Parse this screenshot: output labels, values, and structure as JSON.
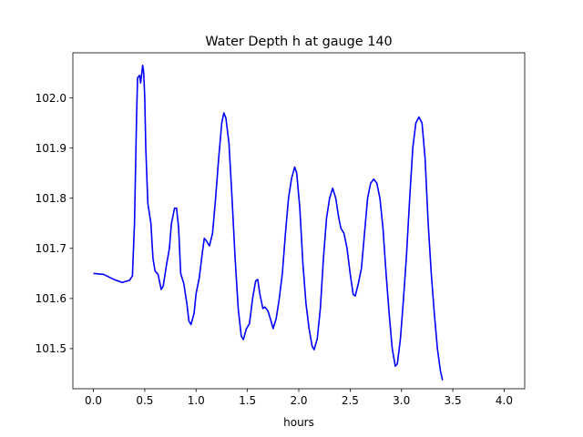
{
  "chart_data": {
    "type": "line",
    "title": "Water Depth h at gauge 140",
    "xlabel": "hours",
    "ylabel": "",
    "xlim": [
      -0.2,
      4.2
    ],
    "ylim": [
      101.42,
      102.09
    ],
    "x_ticks": [
      0.0,
      0.5,
      1.0,
      1.5,
      2.0,
      2.5,
      3.0,
      3.5,
      4.0
    ],
    "x_tick_labels": [
      "0.0",
      "0.5",
      "1.0",
      "1.5",
      "2.0",
      "2.5",
      "3.0",
      "3.5",
      "4.0"
    ],
    "y_ticks": [
      101.5,
      101.6,
      101.7,
      101.8,
      101.9,
      102.0
    ],
    "y_tick_labels": [
      "101.5",
      "101.6",
      "101.7",
      "101.8",
      "101.9",
      "102.0"
    ],
    "grid": false,
    "series": [
      {
        "color": "#0000ff",
        "points": [
          [
            0.0,
            101.65
          ],
          [
            0.1,
            101.648
          ],
          [
            0.2,
            101.638
          ],
          [
            0.28,
            101.632
          ],
          [
            0.35,
            101.636
          ],
          [
            0.38,
            101.645
          ],
          [
            0.4,
            101.75
          ],
          [
            0.42,
            101.96
          ],
          [
            0.43,
            102.04
          ],
          [
            0.45,
            102.045
          ],
          [
            0.46,
            102.03
          ],
          [
            0.48,
            102.065
          ],
          [
            0.49,
            102.05
          ],
          [
            0.5,
            102.0
          ],
          [
            0.51,
            101.9
          ],
          [
            0.53,
            101.79
          ],
          [
            0.56,
            101.75
          ],
          [
            0.58,
            101.68
          ],
          [
            0.6,
            101.655
          ],
          [
            0.63,
            101.648
          ],
          [
            0.66,
            101.618
          ],
          [
            0.68,
            101.625
          ],
          [
            0.71,
            101.665
          ],
          [
            0.74,
            101.7
          ],
          [
            0.76,
            101.75
          ],
          [
            0.79,
            101.78
          ],
          [
            0.81,
            101.78
          ],
          [
            0.83,
            101.74
          ],
          [
            0.85,
            101.65
          ],
          [
            0.88,
            101.63
          ],
          [
            0.91,
            101.59
          ],
          [
            0.93,
            101.555
          ],
          [
            0.95,
            101.548
          ],
          [
            0.98,
            101.57
          ],
          [
            1.0,
            101.61
          ],
          [
            1.03,
            101.64
          ],
          [
            1.06,
            101.69
          ],
          [
            1.08,
            101.72
          ],
          [
            1.1,
            101.715
          ],
          [
            1.13,
            101.705
          ],
          [
            1.16,
            101.73
          ],
          [
            1.19,
            101.8
          ],
          [
            1.22,
            101.88
          ],
          [
            1.25,
            101.95
          ],
          [
            1.27,
            101.97
          ],
          [
            1.29,
            101.96
          ],
          [
            1.32,
            101.91
          ],
          [
            1.35,
            101.8
          ],
          [
            1.38,
            101.68
          ],
          [
            1.41,
            101.58
          ],
          [
            1.44,
            101.525
          ],
          [
            1.46,
            101.518
          ],
          [
            1.49,
            101.54
          ],
          [
            1.52,
            101.55
          ],
          [
            1.55,
            101.6
          ],
          [
            1.58,
            101.635
          ],
          [
            1.6,
            101.638
          ],
          [
            1.62,
            101.61
          ],
          [
            1.65,
            101.58
          ],
          [
            1.67,
            101.583
          ],
          [
            1.7,
            101.575
          ],
          [
            1.73,
            101.555
          ],
          [
            1.75,
            101.54
          ],
          [
            1.78,
            101.56
          ],
          [
            1.81,
            101.6
          ],
          [
            1.84,
            101.65
          ],
          [
            1.87,
            101.73
          ],
          [
            1.9,
            101.8
          ],
          [
            1.93,
            101.84
          ],
          [
            1.96,
            101.862
          ],
          [
            1.98,
            101.85
          ],
          [
            2.01,
            101.78
          ],
          [
            2.04,
            101.67
          ],
          [
            2.07,
            101.59
          ],
          [
            2.1,
            101.54
          ],
          [
            2.13,
            101.505
          ],
          [
            2.15,
            101.498
          ],
          [
            2.18,
            101.52
          ],
          [
            2.21,
            101.58
          ],
          [
            2.24,
            101.68
          ],
          [
            2.27,
            101.76
          ],
          [
            2.3,
            101.8
          ],
          [
            2.33,
            101.82
          ],
          [
            2.36,
            101.8
          ],
          [
            2.39,
            101.76
          ],
          [
            2.41,
            101.74
          ],
          [
            2.44,
            101.73
          ],
          [
            2.47,
            101.7
          ],
          [
            2.5,
            101.65
          ],
          [
            2.53,
            101.608
          ],
          [
            2.55,
            101.605
          ],
          [
            2.58,
            101.63
          ],
          [
            2.61,
            101.66
          ],
          [
            2.64,
            101.73
          ],
          [
            2.67,
            101.8
          ],
          [
            2.7,
            101.83
          ],
          [
            2.73,
            101.838
          ],
          [
            2.76,
            101.83
          ],
          [
            2.79,
            101.8
          ],
          [
            2.82,
            101.74
          ],
          [
            2.85,
            101.65
          ],
          [
            2.88,
            101.57
          ],
          [
            2.91,
            101.5
          ],
          [
            2.94,
            101.465
          ],
          [
            2.96,
            101.47
          ],
          [
            2.99,
            101.52
          ],
          [
            3.02,
            101.6
          ],
          [
            3.05,
            101.69
          ],
          [
            3.08,
            101.8
          ],
          [
            3.11,
            101.9
          ],
          [
            3.14,
            101.95
          ],
          [
            3.17,
            101.962
          ],
          [
            3.2,
            101.95
          ],
          [
            3.23,
            101.88
          ],
          [
            3.26,
            101.75
          ],
          [
            3.29,
            101.65
          ],
          [
            3.32,
            101.57
          ],
          [
            3.35,
            101.5
          ],
          [
            3.38,
            101.455
          ],
          [
            3.4,
            101.437
          ]
        ]
      }
    ]
  }
}
